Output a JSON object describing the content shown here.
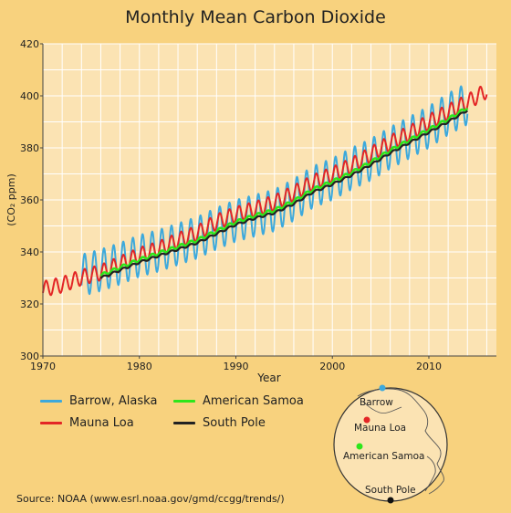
{
  "title": "Monthly Mean Carbon Dioxide",
  "source": "Source: NOAA (www.esrl.noaa.gov/gmd/ccgg/trends/)",
  "colors": {
    "background": "#f8d27e",
    "plot_background": "#fbe3b3",
    "barrow": "#3da9dc",
    "mauna_loa": "#e32626",
    "american_samoa": "#2ee61b",
    "south_pole": "#222222"
  },
  "legend": [
    {
      "name": "Barrow, Alaska",
      "color": "#3da9dc"
    },
    {
      "name": "American Samoa",
      "color": "#2ee61b"
    },
    {
      "name": "Mauna Loa",
      "color": "#e32626"
    },
    {
      "name": "South Pole",
      "color": "#222222"
    }
  ],
  "globe": {
    "labels": [
      "Barrow",
      "Mauna Loa",
      "American Samoa",
      "South Pole"
    ]
  },
  "chart_data": {
    "type": "line",
    "title": "Monthly Mean Carbon Dioxide",
    "xlabel": "Year",
    "ylabel": "(CO₂ ppm)",
    "xlim": [
      1970,
      2017
    ],
    "ylim": [
      300,
      420
    ],
    "xticks": [
      1970,
      1980,
      1990,
      2000,
      2010
    ],
    "yticks": [
      300,
      320,
      340,
      360,
      380,
      400,
      420
    ],
    "grid": true,
    "series": [
      {
        "name": "Barrow, Alaska",
        "x": [
          1974,
          1976,
          1978,
          1980,
          1982,
          1984,
          1986,
          1988,
          1990,
          1992,
          1994,
          1996,
          1998,
          2000,
          2002,
          2004,
          2006,
          2008,
          2010,
          2012,
          2014
        ],
        "y": [
          331,
          333,
          335.5,
          338.5,
          340.5,
          343,
          345.5,
          349,
          352,
          354,
          356,
          360,
          365,
          368,
          372,
          375.5,
          380,
          384,
          388,
          393,
          397
        ],
        "seasonal_amplitude": 8
      },
      {
        "name": "Mauna Loa",
        "x": [
          1970,
          1972,
          1974,
          1976,
          1978,
          1980,
          1982,
          1984,
          1986,
          1988,
          1990,
          1992,
          1994,
          1996,
          1998,
          2000,
          2002,
          2004,
          2006,
          2008,
          2010,
          2012,
          2014,
          2016
        ],
        "y": [
          325.7,
          327.4,
          330.2,
          332.1,
          335.4,
          338.7,
          341.1,
          344.4,
          347.2,
          351.5,
          354.4,
          356.4,
          358.9,
          362.6,
          366.7,
          369.7,
          373.2,
          377.5,
          381.9,
          385.6,
          389.9,
          393.8,
          397.6,
          402
        ],
        "seasonal_amplitude": 3
      },
      {
        "name": "American Samoa",
        "x": [
          1976,
          1978,
          1980,
          1982,
          1984,
          1986,
          1988,
          1990,
          1992,
          1994,
          1996,
          1998,
          2000,
          2002,
          2004,
          2006,
          2008,
          2010,
          2012,
          2014
        ],
        "y": [
          331,
          334,
          337,
          339.5,
          342,
          344.5,
          348,
          351.5,
          354,
          356,
          359.5,
          364,
          367,
          370.5,
          374.5,
          379,
          383,
          387,
          391,
          395.5
        ],
        "seasonal_amplitude": 0.6
      },
      {
        "name": "South Pole",
        "x": [
          1976,
          1978,
          1980,
          1982,
          1984,
          1986,
          1988,
          1990,
          1992,
          1994,
          1996,
          1998,
          2000,
          2002,
          2004,
          2006,
          2008,
          2010,
          2012,
          2014
        ],
        "y": [
          330,
          333,
          336,
          338.5,
          341,
          343.5,
          347,
          350.5,
          353,
          355,
          358.5,
          363,
          366,
          369.5,
          373.5,
          378,
          382,
          386,
          390,
          394.5
        ],
        "seasonal_amplitude": 0.4
      }
    ]
  }
}
